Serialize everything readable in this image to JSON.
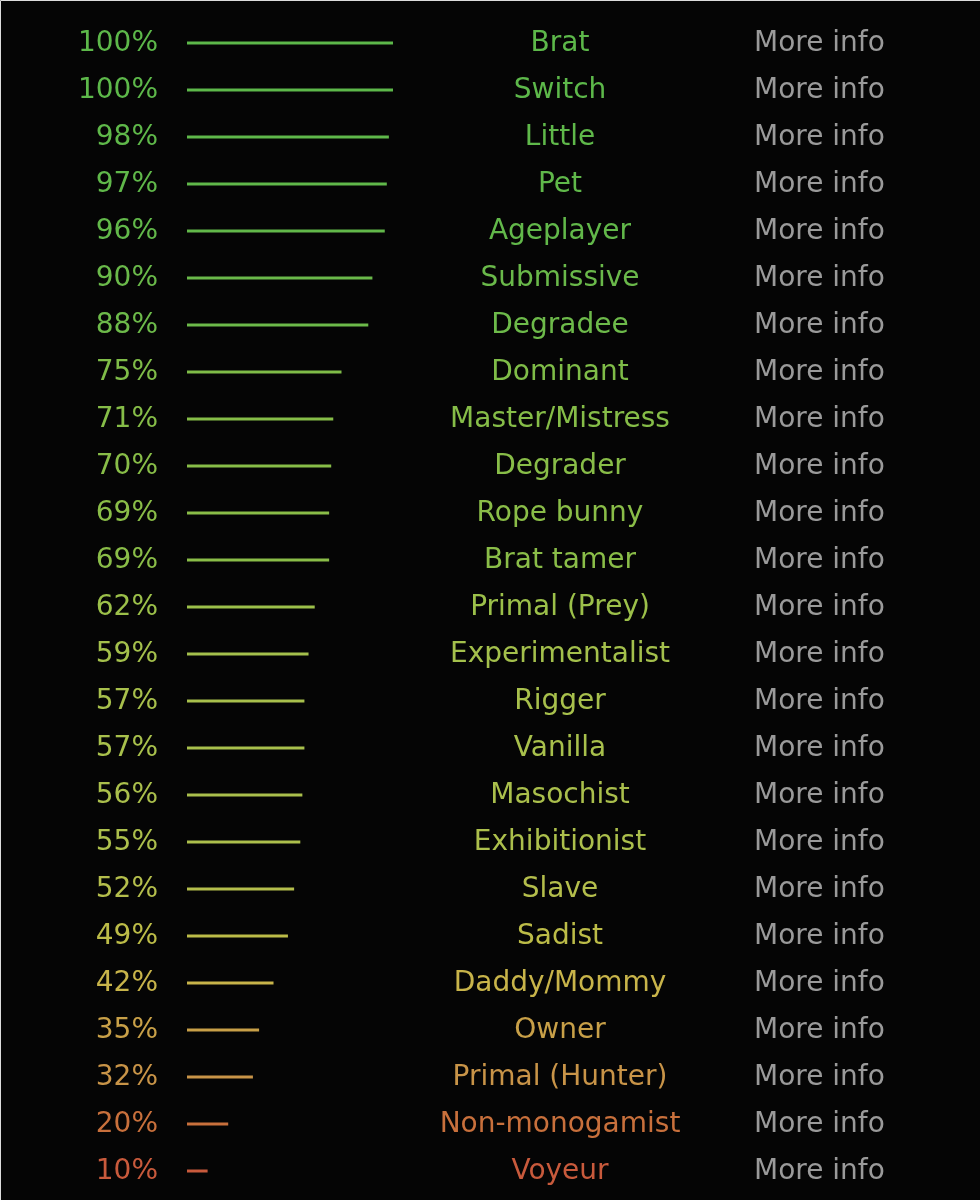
{
  "chart_data": {
    "type": "bar",
    "orientation": "horizontal",
    "categories": [
      "Brat",
      "Switch",
      "Little",
      "Pet",
      "Ageplayer",
      "Submissive",
      "Degradee",
      "Dominant",
      "Master/Mistress",
      "Degrader",
      "Rope bunny",
      "Brat tamer",
      "Primal (Prey)",
      "Experimentalist",
      "Rigger",
      "Vanilla",
      "Masochist",
      "Exhibitionist",
      "Slave",
      "Sadist",
      "Daddy/Mommy",
      "Owner",
      "Primal (Hunter)",
      "Non-monogamist",
      "Voyeur"
    ],
    "values": [
      100,
      100,
      98,
      97,
      96,
      90,
      88,
      75,
      71,
      70,
      69,
      69,
      62,
      59,
      57,
      57,
      56,
      55,
      52,
      49,
      42,
      35,
      32,
      20,
      10
    ],
    "value_labels": [
      "100%",
      "100%",
      "98%",
      "97%",
      "96%",
      "90%",
      "88%",
      "75%",
      "71%",
      "70%",
      "69%",
      "69%",
      "62%",
      "59%",
      "57%",
      "57%",
      "56%",
      "55%",
      "52%",
      "49%",
      "42%",
      "35%",
      "32%",
      "20%",
      "10%"
    ],
    "colors": [
      "#5db84a",
      "#5db84a",
      "#5fb84a",
      "#60b84a",
      "#62b84a",
      "#6ab94a",
      "#6dba4a",
      "#7fbc48",
      "#86bd48",
      "#88bd48",
      "#8abd48",
      "#8abd48",
      "#9cc04a",
      "#a4c04c",
      "#a8c04c",
      "#a8c04c",
      "#aabf4c",
      "#acbf4c",
      "#b4be4c",
      "#bcbc48",
      "#c8b44a",
      "#c8a048",
      "#c89448",
      "#c8703c",
      "#c85a3c"
    ],
    "annotations": [
      "More info",
      "More info",
      "More info",
      "More info",
      "More info",
      "More info",
      "More info",
      "More info",
      "More info",
      "More info",
      "More info",
      "More info",
      "More info",
      "More info",
      "More info",
      "More info",
      "More info",
      "More info",
      "More info",
      "More info",
      "More info",
      "More info",
      "More info",
      "More info",
      "More info"
    ],
    "tick_labels": "y",
    "legend": false,
    "grid": false
  }
}
